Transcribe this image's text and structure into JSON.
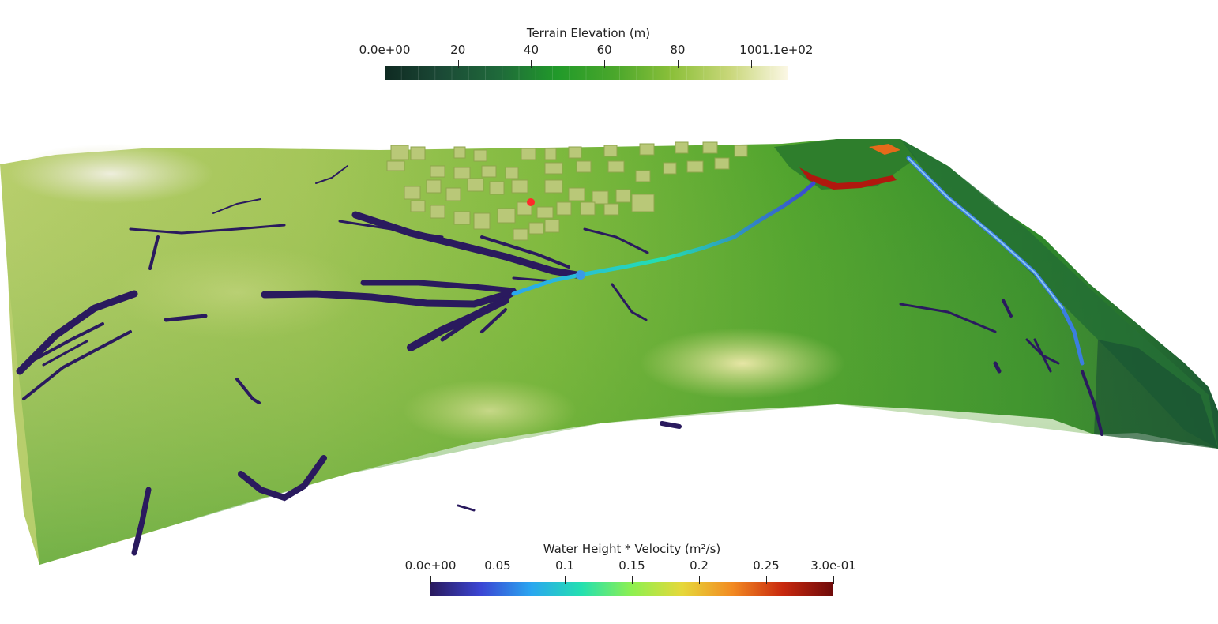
{
  "view": {
    "title": "",
    "marker_color": "#ff2a2a"
  },
  "colorbars": {
    "elevation": {
      "title": "Terrain Elevation (m)",
      "ticks": [
        "0.0e+00",
        "20",
        "40",
        "60",
        "80",
        "100",
        "1.1e+02"
      ],
      "tick_values": [
        0,
        20,
        40,
        60,
        80,
        100,
        110
      ],
      "range": [
        0,
        110
      ],
      "colors": [
        "#0f2a22",
        "#1b4a36",
        "#1f6a3a",
        "#219a2a",
        "#4aa72b",
        "#8cc03a",
        "#c9d77a",
        "#fbf7e4"
      ]
    },
    "flux": {
      "title": "Water Height * Velocity (m²/s)",
      "ticks": [
        "0.0e+00",
        "0.05",
        "0.1",
        "0.15",
        "0.2",
        "0.25",
        "3.0e-01"
      ],
      "tick_values": [
        0,
        0.05,
        0.1,
        0.15,
        0.2,
        0.25,
        0.3
      ],
      "range": [
        0,
        0.3
      ],
      "colors": [
        "#2a1a5e",
        "#3b46d4",
        "#2aa6f0",
        "#24e0b0",
        "#8ef050",
        "#e6d83a",
        "#f28a22",
        "#c8280e",
        "#6e0a0a"
      ]
    }
  }
}
